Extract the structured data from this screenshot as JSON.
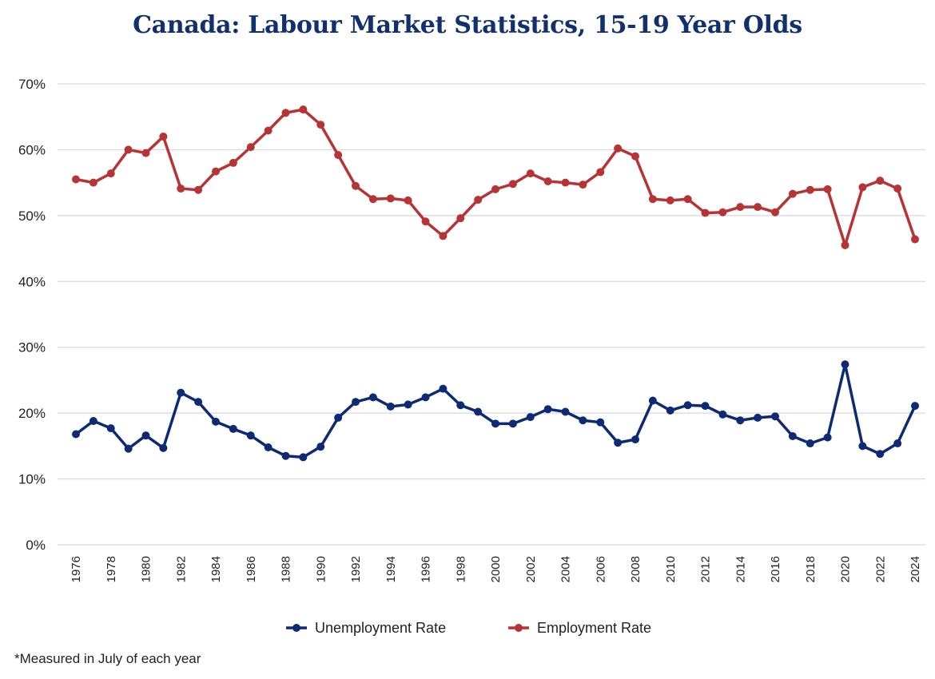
{
  "chart_data": {
    "type": "line",
    "title": "Canada: Labour Market Statistics, 15-19 Year Olds",
    "xlabel": "",
    "ylabel": "",
    "ylim": [
      0,
      70
    ],
    "y_ticks": [
      "0%",
      "10%",
      "20%",
      "30%",
      "40%",
      "50%",
      "60%",
      "70%"
    ],
    "x_tick_labels": [
      "1976",
      "1978",
      "1980",
      "1982",
      "1984",
      "1986",
      "1988",
      "1990",
      "1992",
      "1994",
      "1996",
      "1998",
      "2000",
      "2002",
      "2004",
      "2006",
      "2008",
      "2010",
      "2012",
      "2014",
      "2016",
      "2018",
      "2020",
      "2022",
      "2024"
    ],
    "x": [
      1976,
      1977,
      1978,
      1979,
      1980,
      1981,
      1982,
      1983,
      1984,
      1985,
      1986,
      1987,
      1988,
      1989,
      1990,
      1991,
      1992,
      1993,
      1994,
      1995,
      1996,
      1997,
      1998,
      1999,
      2000,
      2001,
      2002,
      2003,
      2004,
      2005,
      2006,
      2007,
      2008,
      2009,
      2010,
      2011,
      2012,
      2013,
      2014,
      2015,
      2016,
      2017,
      2018,
      2019,
      2020,
      2021,
      2022,
      2023,
      2024
    ],
    "grid": "horizontal",
    "legend_position": "bottom",
    "series": [
      {
        "name": "Unemployment Rate",
        "color": "#0d2a73",
        "values": [
          16.8,
          18.8,
          17.7,
          14.6,
          16.6,
          14.7,
          23.1,
          21.7,
          18.7,
          17.6,
          16.6,
          14.8,
          13.5,
          13.3,
          14.9,
          19.3,
          21.7,
          22.4,
          21.0,
          21.3,
          22.4,
          23.7,
          21.2,
          20.2,
          18.4,
          18.4,
          19.4,
          20.6,
          20.2,
          18.9,
          18.6,
          15.5,
          16.0,
          21.9,
          20.4,
          21.2,
          21.1,
          19.8,
          18.9,
          19.3,
          19.5,
          16.5,
          15.4,
          16.3,
          27.4,
          15.0,
          13.8,
          15.4,
          21.1
        ]
      },
      {
        "name": "Employment Rate",
        "color": "#b63336",
        "values": [
          55.5,
          55.0,
          56.4,
          60.0,
          59.5,
          62.0,
          54.1,
          53.9,
          56.7,
          58.0,
          60.4,
          62.9,
          65.6,
          66.1,
          63.8,
          59.2,
          54.5,
          52.5,
          52.6,
          52.3,
          49.1,
          46.9,
          49.6,
          52.4,
          54.0,
          54.8,
          56.4,
          55.2,
          55.0,
          54.7,
          56.6,
          60.2,
          59.0,
          52.5,
          52.3,
          52.5,
          50.4,
          50.5,
          51.3,
          51.3,
          50.5,
          53.3,
          53.9,
          54.0,
          45.5,
          54.3,
          55.3,
          54.1,
          46.4
        ]
      }
    ],
    "annotation": "*Measured in July of each year"
  }
}
